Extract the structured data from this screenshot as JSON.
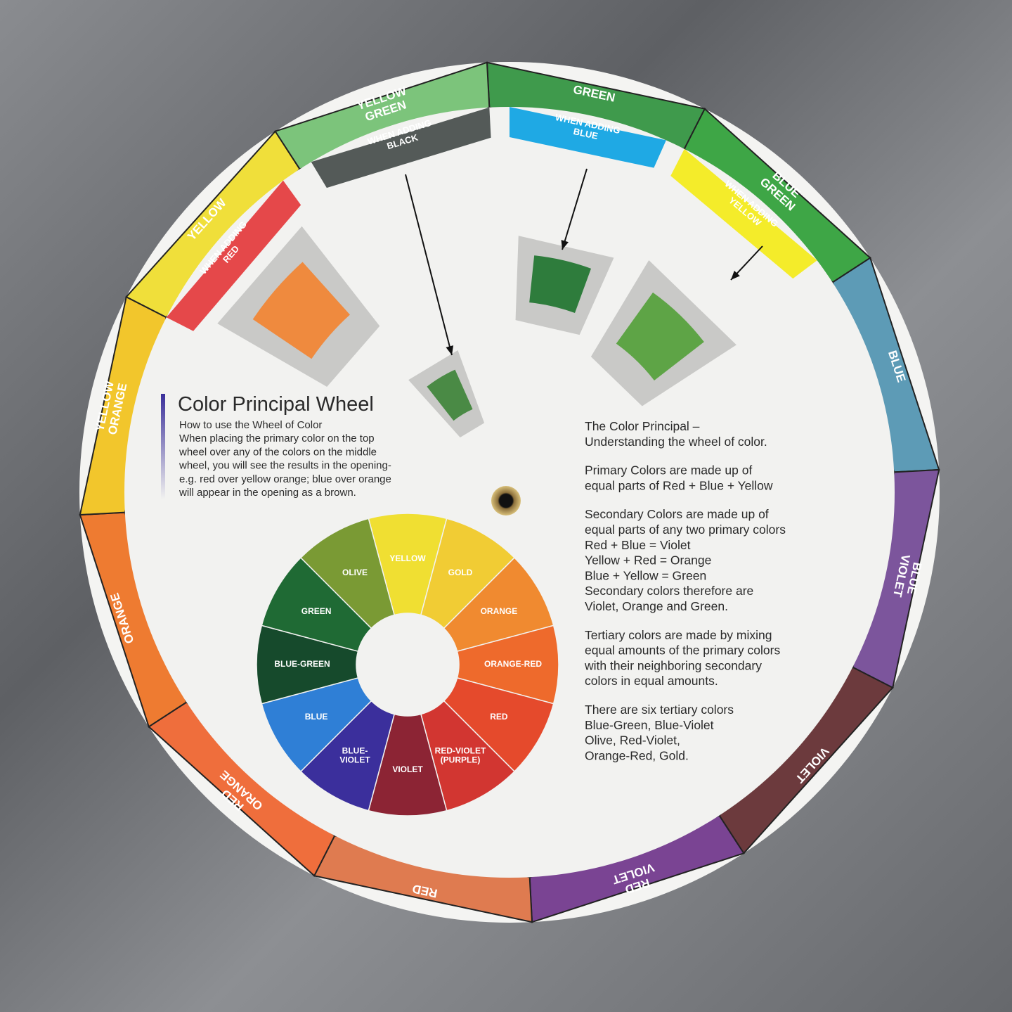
{
  "outer_ring": [
    {
      "label": "GREEN",
      "color": "#3f9a4c"
    },
    {
      "label": "BLUE GREEN",
      "color": "#3ea646"
    },
    {
      "label": "BLUE",
      "color": "#5d9bb6"
    },
    {
      "label": "BLUE VIOLET",
      "color": "#7c559c"
    },
    {
      "label": "VIOLET",
      "color": "#6c3a3d"
    },
    {
      "label": "RED VIOLET",
      "color": "#7a4493"
    },
    {
      "label": "RED",
      "color": "#df7b50"
    },
    {
      "label": "RED ORANGE",
      "color": "#ef6e3c"
    },
    {
      "label": "ORANGE",
      "color": "#ee7b31"
    },
    {
      "label": "YELLOW ORANGE",
      "color": "#f2c62c"
    },
    {
      "label": "YELLOW",
      "color": "#f0df3a"
    },
    {
      "label": "YELLOW GREEN",
      "color": "#7cc47b"
    }
  ],
  "adding_bands": [
    {
      "label": "WHEN ADDING RED",
      "color": "#e5484a",
      "text_color": "#ffffff"
    },
    {
      "label": "WHEN ADDING BLACK",
      "color": "#545a58",
      "text_color": "#ffffff"
    },
    {
      "label": "WHEN ADDING BLUE",
      "color": "#1fa9e4",
      "text_color": "#ffffff"
    },
    {
      "label": "WHEN ADDING YELLOW",
      "color": "#f4ec2a",
      "text_color": "#222222"
    }
  ],
  "windows": [
    {
      "name": "orange",
      "color": "#ef8a3e"
    },
    {
      "name": "dark-olive-green",
      "color": "#4a8a45"
    },
    {
      "name": "dark-green",
      "color": "#2e7c3c"
    },
    {
      "name": "green",
      "color": "#5ea446"
    }
  ],
  "inner_wheel": [
    {
      "label": "YELLOW",
      "color": "#f0df32",
      "text_color": "#555555"
    },
    {
      "label": "GOLD",
      "color": "#f1cc34",
      "text_color": "#555555"
    },
    {
      "label": "ORANGE",
      "color": "#f08a30",
      "text_color": "#ffffff"
    },
    {
      "label": "ORANGE-RED",
      "color": "#ee6a2c",
      "text_color": "#ffffff"
    },
    {
      "label": "RED",
      "color": "#e54a2c",
      "text_color": "#ffffff"
    },
    {
      "label": "RED-VIOLET (PURPLE)",
      "color": "#d23631",
      "text_color": "#ffffff"
    },
    {
      "label": "VIOLET",
      "color": "#8c2434",
      "text_color": "#ffffff"
    },
    {
      "label": "BLUE- VIOLET",
      "color": "#3b2f9c",
      "text_color": "#ffffff"
    },
    {
      "label": "BLUE",
      "color": "#2f7fd6",
      "text_color": "#ffffff"
    },
    {
      "label": "BLUE-GREEN",
      "color": "#164a2c",
      "text_color": "#ffffff"
    },
    {
      "label": "GREEN",
      "color": "#1f6a34",
      "text_color": "#ffffff"
    },
    {
      "label": "OLIVE",
      "color": "#7a9a34",
      "text_color": "#ffffff"
    }
  ],
  "intro": {
    "title": "Color Principal Wheel",
    "lines": [
      "How to use the Wheel of Color",
      "When placing the primary color on the top",
      "wheel over any of the colors on the middle",
      "wheel, you will see the results in the opening-",
      "e.g. red over yellow orange; blue over orange",
      "will appear in the opening as a brown."
    ]
  },
  "explanation": {
    "paragraphs": [
      [
        "The Color Principal –",
        "Understanding the wheel of color."
      ],
      [
        "Primary Colors are made up of",
        "equal parts of Red + Blue + Yellow"
      ],
      [
        "Secondary Colors are made up of",
        "equal parts of any two primary colors",
        "Red + Blue = Violet",
        "Yellow + Red = Orange",
        "Blue + Yellow = Green",
        "Secondary colors therefore are",
        "Violet, Orange and Green."
      ],
      [
        "Tertiary colors are made by mixing",
        "equal amounts of the primary colors",
        "with their neighboring secondary",
        "colors in equal amounts."
      ],
      [
        "There are six tertiary colors",
        "Blue-Green, Blue-Violet",
        "Olive, Red-Violet,",
        "Orange-Red, Gold."
      ]
    ]
  },
  "colors": {
    "disk": "#f2f2f0",
    "frame": "#c9c9c7",
    "background": "#6f7176",
    "accent_bar": "#4a3a9a"
  }
}
